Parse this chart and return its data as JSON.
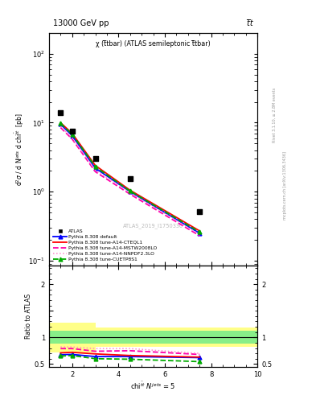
{
  "title_left": "13000 GeV pp",
  "title_right": "t̅t",
  "plot_title": "χ (t̅tbar) (ATLAS semileptonic t̅tbar)",
  "atlas_label": "ATLAS_2019_I1750330",
  "rivet_label": "Rivet 3.1.10, ≥ 2.8M events",
  "mcplots_label": "mcplots.cern.ch [arXiv:1306.3436]",
  "atlas_x": [
    1.5,
    2.0,
    3.0,
    4.5,
    7.5
  ],
  "atlas_y": [
    14.0,
    7.5,
    3.0,
    1.55,
    0.52
  ],
  "x_lines": [
    1.5,
    2.0,
    3.0,
    4.5,
    7.5
  ],
  "default_y": [
    9.5,
    6.5,
    2.2,
    1.0,
    0.25
  ],
  "cteq_y": [
    10.0,
    7.0,
    2.4,
    1.05,
    0.27
  ],
  "mstw_y": [
    8.5,
    5.8,
    1.95,
    0.92,
    0.23
  ],
  "nnpdf_y": [
    8.8,
    6.0,
    2.05,
    0.97,
    0.24
  ],
  "cuetp8s1_y": [
    9.8,
    6.8,
    2.3,
    1.02,
    0.26
  ],
  "ratio_default": [
    0.675,
    0.68,
    0.64,
    0.64,
    0.62
  ],
  "ratio_cteq": [
    0.71,
    0.72,
    0.69,
    0.66,
    0.63
  ],
  "ratio_mstw": [
    0.79,
    0.79,
    0.74,
    0.75,
    0.68
  ],
  "ratio_nnpdf": [
    0.82,
    0.82,
    0.79,
    0.79,
    0.7
  ],
  "ratio_cuetp8s1": [
    0.65,
    0.66,
    0.6,
    0.59,
    0.545
  ],
  "ylim_main": [
    0.085,
    200
  ],
  "ylim_ratio": [
    0.45,
    2.35
  ],
  "xlim": [
    1.0,
    10.0
  ],
  "color_default": "#0000ff",
  "color_cteq": "#ff0000",
  "color_mstw": "#ff00aa",
  "color_nnpdf": "#ff88cc",
  "color_cuetp8s1": "#00aa00",
  "color_atlas": "#000000",
  "bg_color": "#ffffff"
}
